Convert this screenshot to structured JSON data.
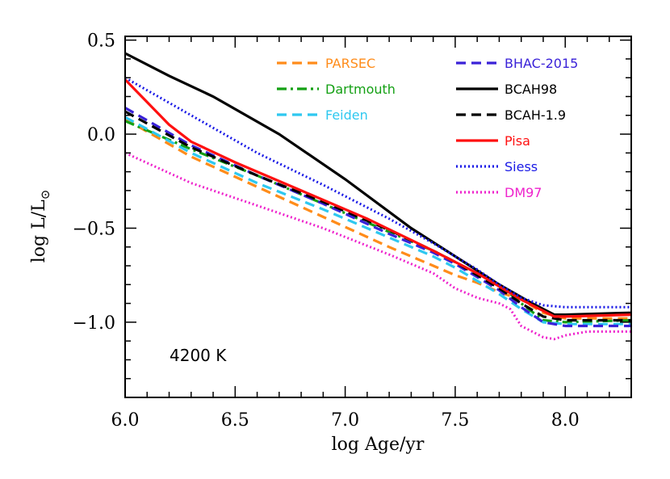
{
  "chart_data": {
    "type": "line",
    "xlabel": "log Age/yr",
    "ylabel_main": "log L/L",
    "ylabel_sub": "⊙",
    "annotation": "4200 K",
    "xlim": [
      6.0,
      8.3
    ],
    "ylim": [
      -1.4,
      0.52
    ],
    "x_ticks": [
      {
        "value": 6.0,
        "label": "6.0"
      },
      {
        "value": 6.5,
        "label": "6.5"
      },
      {
        "value": 7.0,
        "label": "7.0"
      },
      {
        "value": 7.5,
        "label": "7.5"
      },
      {
        "value": 8.0,
        "label": "8.0"
      }
    ],
    "y_ticks": [
      {
        "value": 0.5,
        "label": "0.5"
      },
      {
        "value": 0.0,
        "label": "0.0"
      },
      {
        "value": -0.5,
        "label": "−0.5"
      },
      {
        "value": -1.0,
        "label": "−1.0"
      }
    ],
    "legend_placement": "top-right",
    "series": [
      {
        "name": "PARSEC",
        "color": "#ff8c1a",
        "dash": "dashed",
        "x": [
          6.0,
          6.3,
          6.6,
          6.9,
          7.2,
          7.4,
          7.5,
          7.6,
          7.7,
          7.8,
          7.9,
          8.0,
          8.3
        ],
        "y": [
          0.08,
          -0.12,
          -0.28,
          -0.44,
          -0.6,
          -0.7,
          -0.75,
          -0.79,
          -0.84,
          -0.88,
          -0.95,
          -0.98,
          -0.98
        ]
      },
      {
        "name": "Dartmouth",
        "color": "#14a014",
        "dash": "dashdot",
        "x": [
          6.0,
          6.3,
          6.6,
          6.9,
          7.2,
          7.4,
          7.5,
          7.6,
          7.7,
          7.8,
          7.9,
          8.0,
          8.3
        ],
        "y": [
          0.07,
          -0.08,
          -0.22,
          -0.37,
          -0.52,
          -0.62,
          -0.68,
          -0.74,
          -0.8,
          -0.9,
          -0.99,
          -1.0,
          -0.99
        ]
      },
      {
        "name": "Feiden",
        "color": "#2ec8f0",
        "dash": "dashed",
        "x": [
          6.0,
          6.3,
          6.6,
          6.9,
          7.2,
          7.4,
          7.5,
          7.6,
          7.7,
          7.8,
          7.9,
          8.0,
          8.3
        ],
        "y": [
          0.09,
          -0.1,
          -0.26,
          -0.4,
          -0.55,
          -0.65,
          -0.71,
          -0.78,
          -0.85,
          -0.93,
          -1.0,
          -1.01,
          -1.01
        ]
      },
      {
        "name": "BHAC-2015",
        "color": "#3a22d8",
        "dash": "dashed",
        "x": [
          6.0,
          6.3,
          6.6,
          6.9,
          7.2,
          7.4,
          7.5,
          7.6,
          7.7,
          7.8,
          7.9,
          8.0,
          8.3
        ],
        "y": [
          0.14,
          -0.06,
          -0.22,
          -0.37,
          -0.53,
          -0.63,
          -0.69,
          -0.76,
          -0.83,
          -0.92,
          -1.0,
          -1.02,
          -1.02
        ]
      },
      {
        "name": "BCAH98",
        "color": "#000000",
        "dash": "solid",
        "x": [
          6.0,
          6.2,
          6.4,
          6.7,
          7.0,
          7.3,
          7.5,
          7.7,
          7.85,
          7.95,
          8.0,
          8.3
        ],
        "y": [
          0.43,
          0.31,
          0.2,
          0.0,
          -0.24,
          -0.5,
          -0.65,
          -0.8,
          -0.9,
          -0.96,
          -0.96,
          -0.95
        ]
      },
      {
        "name": "BCAH-1.9",
        "color": "#000000",
        "dash": "dashed",
        "x": [
          6.0,
          6.3,
          6.6,
          6.9,
          7.2,
          7.4,
          7.5,
          7.6,
          7.7,
          7.8,
          7.9,
          8.0,
          8.3
        ],
        "y": [
          0.12,
          -0.07,
          -0.22,
          -0.36,
          -0.51,
          -0.62,
          -0.68,
          -0.75,
          -0.82,
          -0.9,
          -0.97,
          -0.99,
          -0.99
        ]
      },
      {
        "name": "Pisa",
        "color": "#ff1010",
        "dash": "solid",
        "x": [
          6.0,
          6.1,
          6.2,
          6.3,
          6.5,
          6.8,
          7.1,
          7.4,
          7.6,
          7.8,
          7.95,
          8.0,
          8.3
        ],
        "y": [
          0.29,
          0.17,
          0.05,
          -0.04,
          -0.15,
          -0.3,
          -0.45,
          -0.62,
          -0.74,
          -0.88,
          -0.97,
          -0.97,
          -0.96
        ]
      },
      {
        "name": "Siess",
        "color": "#1a1ae6",
        "dash": "dotted",
        "x": [
          6.0,
          6.3,
          6.6,
          6.9,
          7.2,
          7.4,
          7.5,
          7.6,
          7.7,
          7.8,
          7.9,
          8.0,
          8.3
        ],
        "y": [
          0.3,
          0.1,
          -0.1,
          -0.27,
          -0.45,
          -0.58,
          -0.65,
          -0.72,
          -0.8,
          -0.87,
          -0.91,
          -0.92,
          -0.92
        ]
      },
      {
        "name": "DM97",
        "color": "#ee22cc",
        "dash": "dotted",
        "x": [
          6.0,
          6.3,
          6.6,
          6.9,
          7.2,
          7.4,
          7.5,
          7.6,
          7.7,
          7.75,
          7.8,
          7.9,
          7.95,
          8.0,
          8.1,
          8.3
        ],
        "y": [
          -0.1,
          -0.26,
          -0.38,
          -0.5,
          -0.64,
          -0.74,
          -0.82,
          -0.87,
          -0.9,
          -0.93,
          -1.02,
          -1.08,
          -1.09,
          -1.07,
          -1.05,
          -1.05
        ]
      }
    ]
  }
}
